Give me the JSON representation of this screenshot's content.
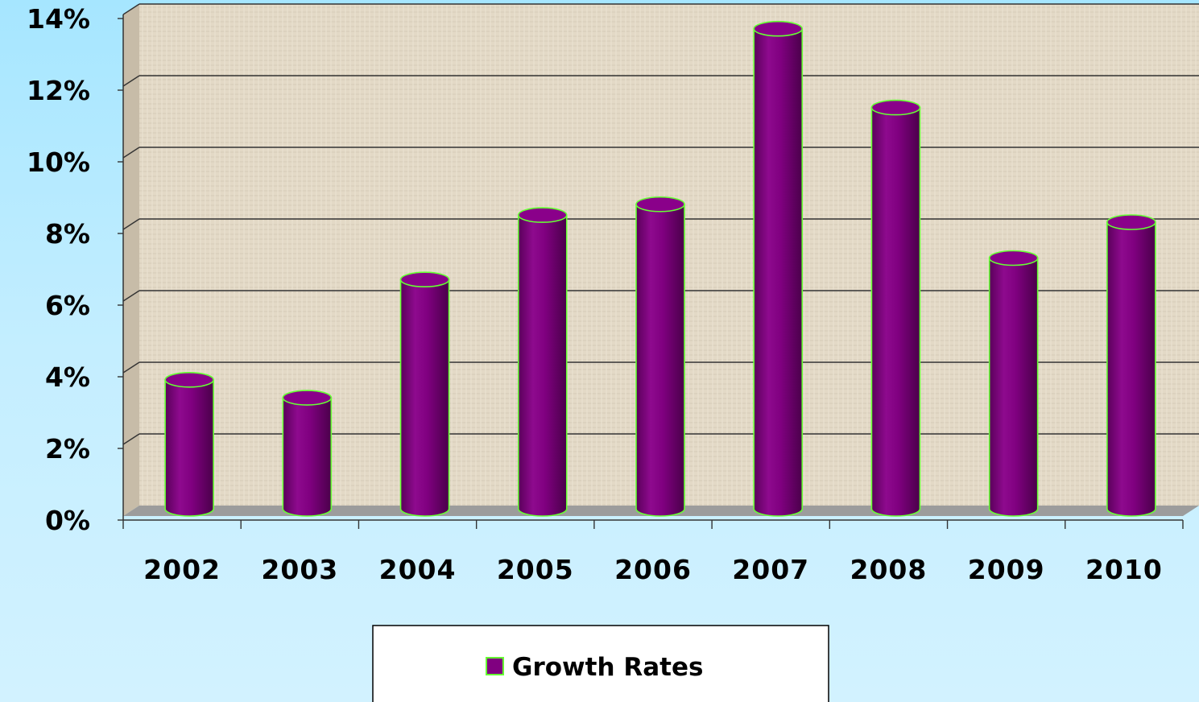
{
  "chart_data": {
    "type": "bar",
    "categories": [
      "2002",
      "2003",
      "2004",
      "2005",
      "2006",
      "2007",
      "2008",
      "2009",
      "2010"
    ],
    "series": [
      {
        "name": "Growth Rates",
        "values": [
          3.6,
          3.1,
          6.4,
          8.2,
          8.5,
          13.4,
          11.2,
          7.0,
          8.0
        ],
        "color": "#800080",
        "outline_color": "#66ff33"
      }
    ],
    "y_ticks": [
      "0%",
      "2%",
      "4%",
      "6%",
      "8%",
      "10%",
      "12%",
      "14%"
    ],
    "ylim": [
      0,
      14
    ],
    "title": "",
    "xlabel": "",
    "ylabel": "",
    "grid": true,
    "legend_position": "bottom",
    "style": "3d-cylinder",
    "plot_background": "#e2d8c4",
    "floor_color": "#9c9c9c"
  }
}
